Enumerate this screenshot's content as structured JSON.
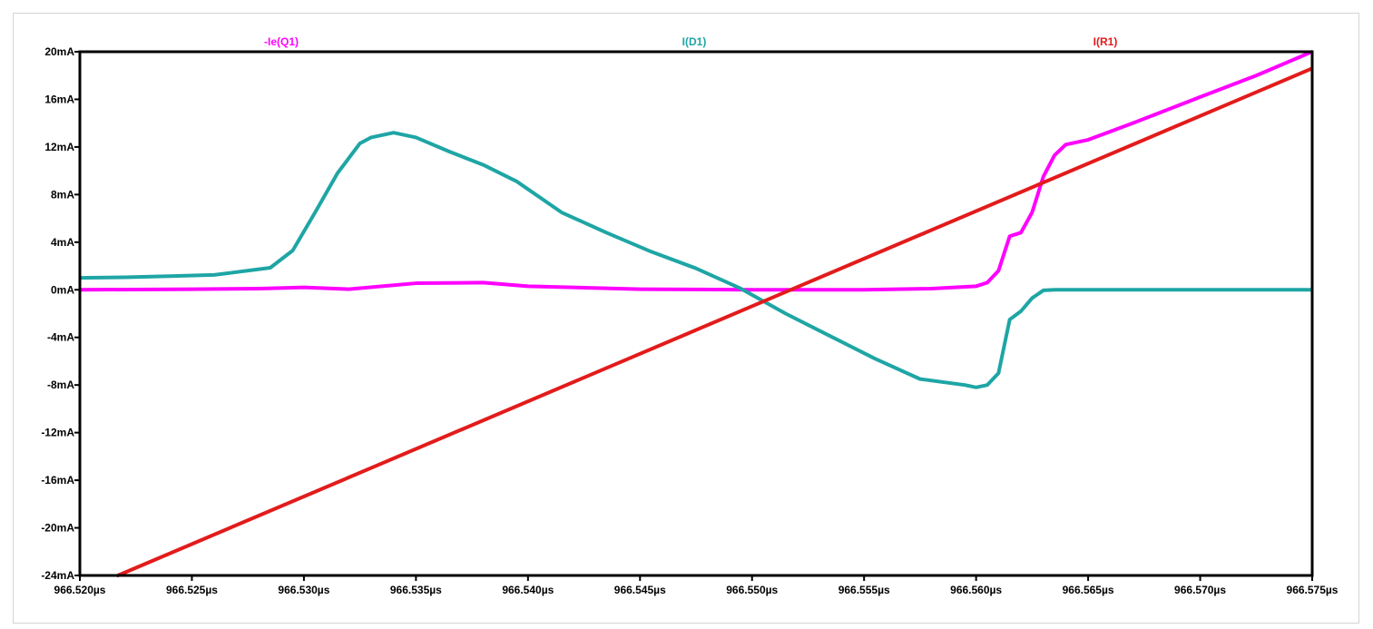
{
  "chart_data": {
    "type": "line",
    "x_unit": "µs",
    "xlim": [
      966.52,
      966.575
    ],
    "ylim": [
      -24,
      20
    ],
    "grid": false,
    "legend": "top",
    "x_ticks": [
      "966.520µs",
      "966.525µs",
      "966.530µs",
      "966.535µs",
      "966.540µs",
      "966.545µs",
      "966.550µs",
      "966.555µs",
      "966.560µs",
      "966.565µs",
      "966.570µs",
      "966.575µs"
    ],
    "x_tick_values": [
      966.52,
      966.525,
      966.53,
      966.535,
      966.54,
      966.545,
      966.55,
      966.555,
      966.56,
      966.565,
      966.57,
      966.575
    ],
    "y_ticks": [
      "-24mA",
      "-20mA",
      "-16mA",
      "-12mA",
      "-8mA",
      "-4mA",
      "0mA",
      "4mA",
      "8mA",
      "12mA",
      "16mA",
      "20mA"
    ],
    "y_tick_values": [
      -24,
      -20,
      -16,
      -12,
      -8,
      -4,
      0,
      4,
      8,
      12,
      16,
      20
    ],
    "series": [
      {
        "name": "-Ie(Q1)",
        "color": "#ff00ff",
        "x": [
          966.52,
          966.525,
          966.528,
          966.53,
          966.532,
          966.535,
          966.538,
          966.54,
          966.545,
          966.55,
          966.555,
          966.558,
          966.56,
          966.5605,
          966.561,
          966.5615,
          966.562,
          966.5625,
          966.563,
          966.5635,
          966.564,
          966.565,
          966.567,
          966.57,
          966.5725,
          966.575
        ],
        "y": [
          0.0,
          0.05,
          0.1,
          0.2,
          0.05,
          0.55,
          0.6,
          0.3,
          0.05,
          0.0,
          0.0,
          0.1,
          0.3,
          0.6,
          1.6,
          4.5,
          4.8,
          6.5,
          9.5,
          11.3,
          12.2,
          12.6,
          14.0,
          16.2,
          18.0,
          20.0
        ]
      },
      {
        "name": "I(D1)",
        "color": "#1fa5a5",
        "x": [
          966.52,
          966.522,
          966.524,
          966.526,
          966.5285,
          966.5295,
          966.5305,
          966.5315,
          966.5325,
          966.533,
          966.534,
          966.535,
          966.5365,
          966.538,
          966.5395,
          966.5415,
          966.5435,
          966.5455,
          966.5475,
          966.5495,
          966.5515,
          966.5535,
          966.5555,
          966.5575,
          966.5595,
          966.56,
          966.5605,
          966.561,
          966.5615,
          966.562,
          966.5625,
          966.563,
          966.5635,
          966.565,
          966.57,
          966.575
        ],
        "y": [
          1.0,
          1.05,
          1.15,
          1.25,
          1.85,
          3.3,
          6.5,
          9.8,
          12.3,
          12.8,
          13.2,
          12.8,
          11.6,
          10.5,
          9.1,
          6.5,
          4.8,
          3.2,
          1.8,
          0.1,
          -2.0,
          -3.9,
          -5.8,
          -7.5,
          -8.0,
          -8.2,
          -8.0,
          -7.0,
          -2.5,
          -1.8,
          -0.7,
          -0.05,
          0.0,
          0.0,
          0.0,
          0.0
        ]
      },
      {
        "name": "I(R1)",
        "color": "#e31b1b",
        "x": [
          966.5217,
          966.575
        ],
        "y": [
          -24.0,
          18.6
        ]
      }
    ]
  }
}
